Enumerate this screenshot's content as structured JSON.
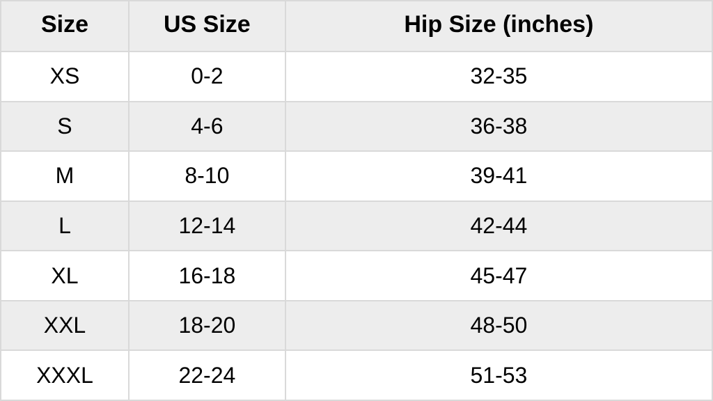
{
  "size_chart": {
    "type": "table",
    "columns": [
      "Size",
      "US Size",
      "Hip Size (inches)"
    ],
    "column_widths_pct": [
      18,
      22,
      60
    ],
    "header_background": "#ededed",
    "row_alt_background": "#ededed",
    "row_background": "#ffffff",
    "border_color": "#d9d9d9",
    "text_color": "#000000",
    "header_fontsize": 34,
    "cell_fontsize": 32,
    "header_fontweight": 700,
    "cell_fontweight": 400,
    "rows": [
      {
        "size": "XS",
        "us": "0-2",
        "hip": "32-35",
        "alt": false
      },
      {
        "size": "S",
        "us": "4-6",
        "hip": "36-38",
        "alt": true
      },
      {
        "size": "M",
        "us": "8-10",
        "hip": "39-41",
        "alt": false
      },
      {
        "size": "L",
        "us": "12-14",
        "hip": "42-44",
        "alt": true
      },
      {
        "size": "XL",
        "us": "16-18",
        "hip": "45-47",
        "alt": false
      },
      {
        "size": "XXL",
        "us": "18-20",
        "hip": "48-50",
        "alt": true
      },
      {
        "size": "XXXL",
        "us": "22-24",
        "hip": "51-53",
        "alt": false
      }
    ]
  }
}
